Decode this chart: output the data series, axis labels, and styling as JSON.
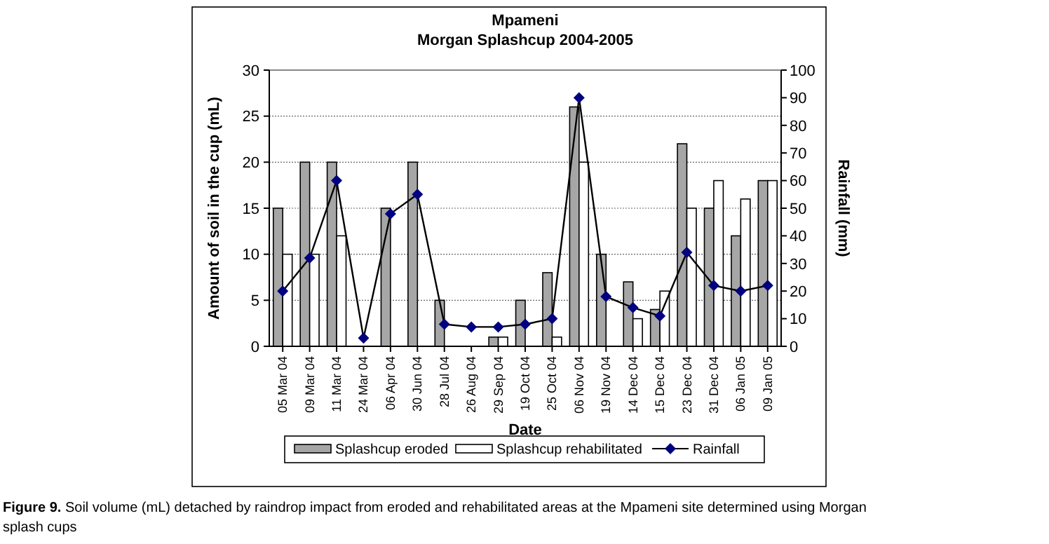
{
  "chart_data": {
    "type": "bar",
    "title": "Mpameni",
    "subtitle": "Morgan Splashcup 2004-2005",
    "xlabel": "Date",
    "ylabel": "Amount of soil in the cup (mL)",
    "y2label": "Rainfall (mm)",
    "categories": [
      "05 Mar 04",
      "09 Mar 04",
      "11 Mar 04",
      "24 Mar 04",
      "06 Apr 04",
      "30 Jun 04",
      "28 Jul 04",
      "26 Aug 04",
      "29 Sep 04",
      "19 Oct 04",
      "25 Oct 04",
      "06 Nov 04",
      "19 Nov 04",
      "14 Dec 04",
      "15 Dec 04",
      "23 Dec 04",
      "31 Dec 04",
      "06 Jan 05",
      "09 Jan 05"
    ],
    "series": [
      {
        "name": "Splashcup eroded",
        "color": "#a6a6a6",
        "values": [
          15,
          20,
          20,
          null,
          15,
          20,
          5,
          null,
          1,
          5,
          8,
          26,
          10,
          7,
          4,
          22,
          15,
          12,
          18
        ]
      },
      {
        "name": "Splashcup rehabilitated",
        "color": "#ffffff",
        "values": [
          10,
          10,
          12,
          null,
          null,
          null,
          null,
          null,
          1,
          null,
          1,
          20,
          null,
          3,
          6,
          15,
          18,
          16,
          18
        ]
      },
      {
        "name": "Rainfall",
        "type": "line",
        "axis": "y2",
        "color": "#000080",
        "marker": "diamond",
        "values": [
          20,
          32,
          60,
          3,
          48,
          55,
          8,
          7,
          7,
          8,
          10,
          90,
          18,
          14,
          11,
          34,
          22,
          20,
          22
        ]
      }
    ],
    "ylim": [
      0,
      30
    ],
    "yticks": [
      0,
      5,
      10,
      15,
      20,
      25,
      30
    ],
    "y2lim": [
      0,
      100
    ],
    "y2ticks": [
      0,
      10,
      20,
      30,
      40,
      50,
      60,
      70,
      80,
      90,
      100
    ],
    "grid": "y",
    "legend": "bottom",
    "annotations": [
      "Figure 9. Soil volume (mL) detached by raindrop impact from eroded and rehabilitated areas at the Mpameni site determined using Morgan splash cups"
    ]
  }
}
